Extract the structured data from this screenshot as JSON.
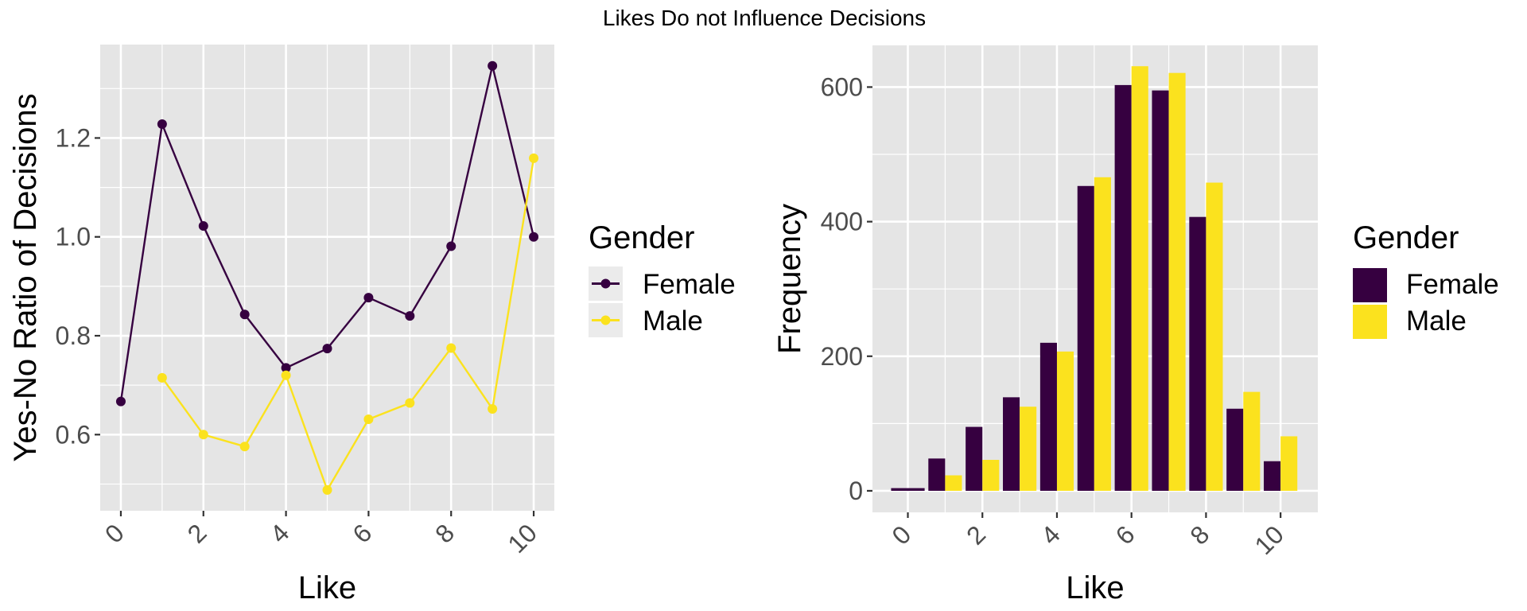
{
  "figure": {
    "title": "Likes Do not Influence Decisions",
    "background": "#ffffff",
    "panel_background": "#e5e5e5",
    "grid_color": "#ffffff"
  },
  "colors": {
    "Female": "#360040",
    "Male": "#fbe21e"
  },
  "chart_data": [
    {
      "type": "line",
      "title": "",
      "xlabel": "Like",
      "ylabel": "Yes-No Ratio of Decisions",
      "x": [
        0,
        1,
        2,
        3,
        4,
        5,
        6,
        7,
        8,
        9,
        10
      ],
      "xlim": [
        -0.5,
        10.5
      ],
      "ylim": [
        0.446,
        1.389
      ],
      "xticks": [
        0,
        2,
        4,
        6,
        8,
        10
      ],
      "xtick_labels": [
        "0",
        "2",
        "4",
        "6",
        "8",
        "10"
      ],
      "yticks": [
        0.6,
        0.8,
        1.0,
        1.2
      ],
      "ytick_labels": [
        "0.6",
        "0.8",
        "1.0",
        "1.2"
      ],
      "grid": true,
      "markers": true,
      "legend": {
        "title": "Gender",
        "placement": "right",
        "entries": [
          "Female",
          "Male"
        ]
      },
      "series": [
        {
          "name": "Female",
          "x": [
            0,
            1,
            2,
            3,
            4,
            5,
            6,
            7,
            8,
            9,
            10
          ],
          "values": [
            0.667,
            1.228,
            1.022,
            0.843,
            0.735,
            0.774,
            0.877,
            0.84,
            0.981,
            1.346,
            1.0
          ]
        },
        {
          "name": "Male",
          "x": [
            1,
            2,
            3,
            4,
            5,
            6,
            7,
            8,
            9,
            10
          ],
          "values": [
            0.715,
            0.6,
            0.576,
            0.72,
            0.488,
            0.631,
            0.664,
            0.775,
            0.652,
            1.159
          ]
        }
      ]
    },
    {
      "type": "bar",
      "title": "",
      "xlabel": "Like",
      "ylabel": "Frequency",
      "categories": [
        0,
        1,
        2,
        3,
        4,
        5,
        6,
        7,
        8,
        9,
        10
      ],
      "xlim": [
        -0.95,
        11.0
      ],
      "ylim": [
        -32,
        662
      ],
      "xticks": [
        0,
        2,
        4,
        6,
        8,
        10
      ],
      "xtick_labels": [
        "0",
        "2",
        "4",
        "6",
        "8",
        "10"
      ],
      "yticks": [
        0,
        200,
        400,
        600
      ],
      "ytick_labels": [
        "0",
        "200",
        "400",
        "600"
      ],
      "grid": true,
      "position": "dodge",
      "legend": {
        "title": "Gender",
        "placement": "right",
        "entries": [
          "Female",
          "Male"
        ]
      },
      "series": [
        {
          "name": "Female",
          "values": [
            4,
            48,
            95,
            139,
            220,
            453,
            603,
            595,
            407,
            122,
            44
          ]
        },
        {
          "name": "Male",
          "values": [
            0,
            23,
            46,
            125,
            207,
            466,
            631,
            621,
            458,
            147,
            81
          ]
        }
      ]
    }
  ]
}
